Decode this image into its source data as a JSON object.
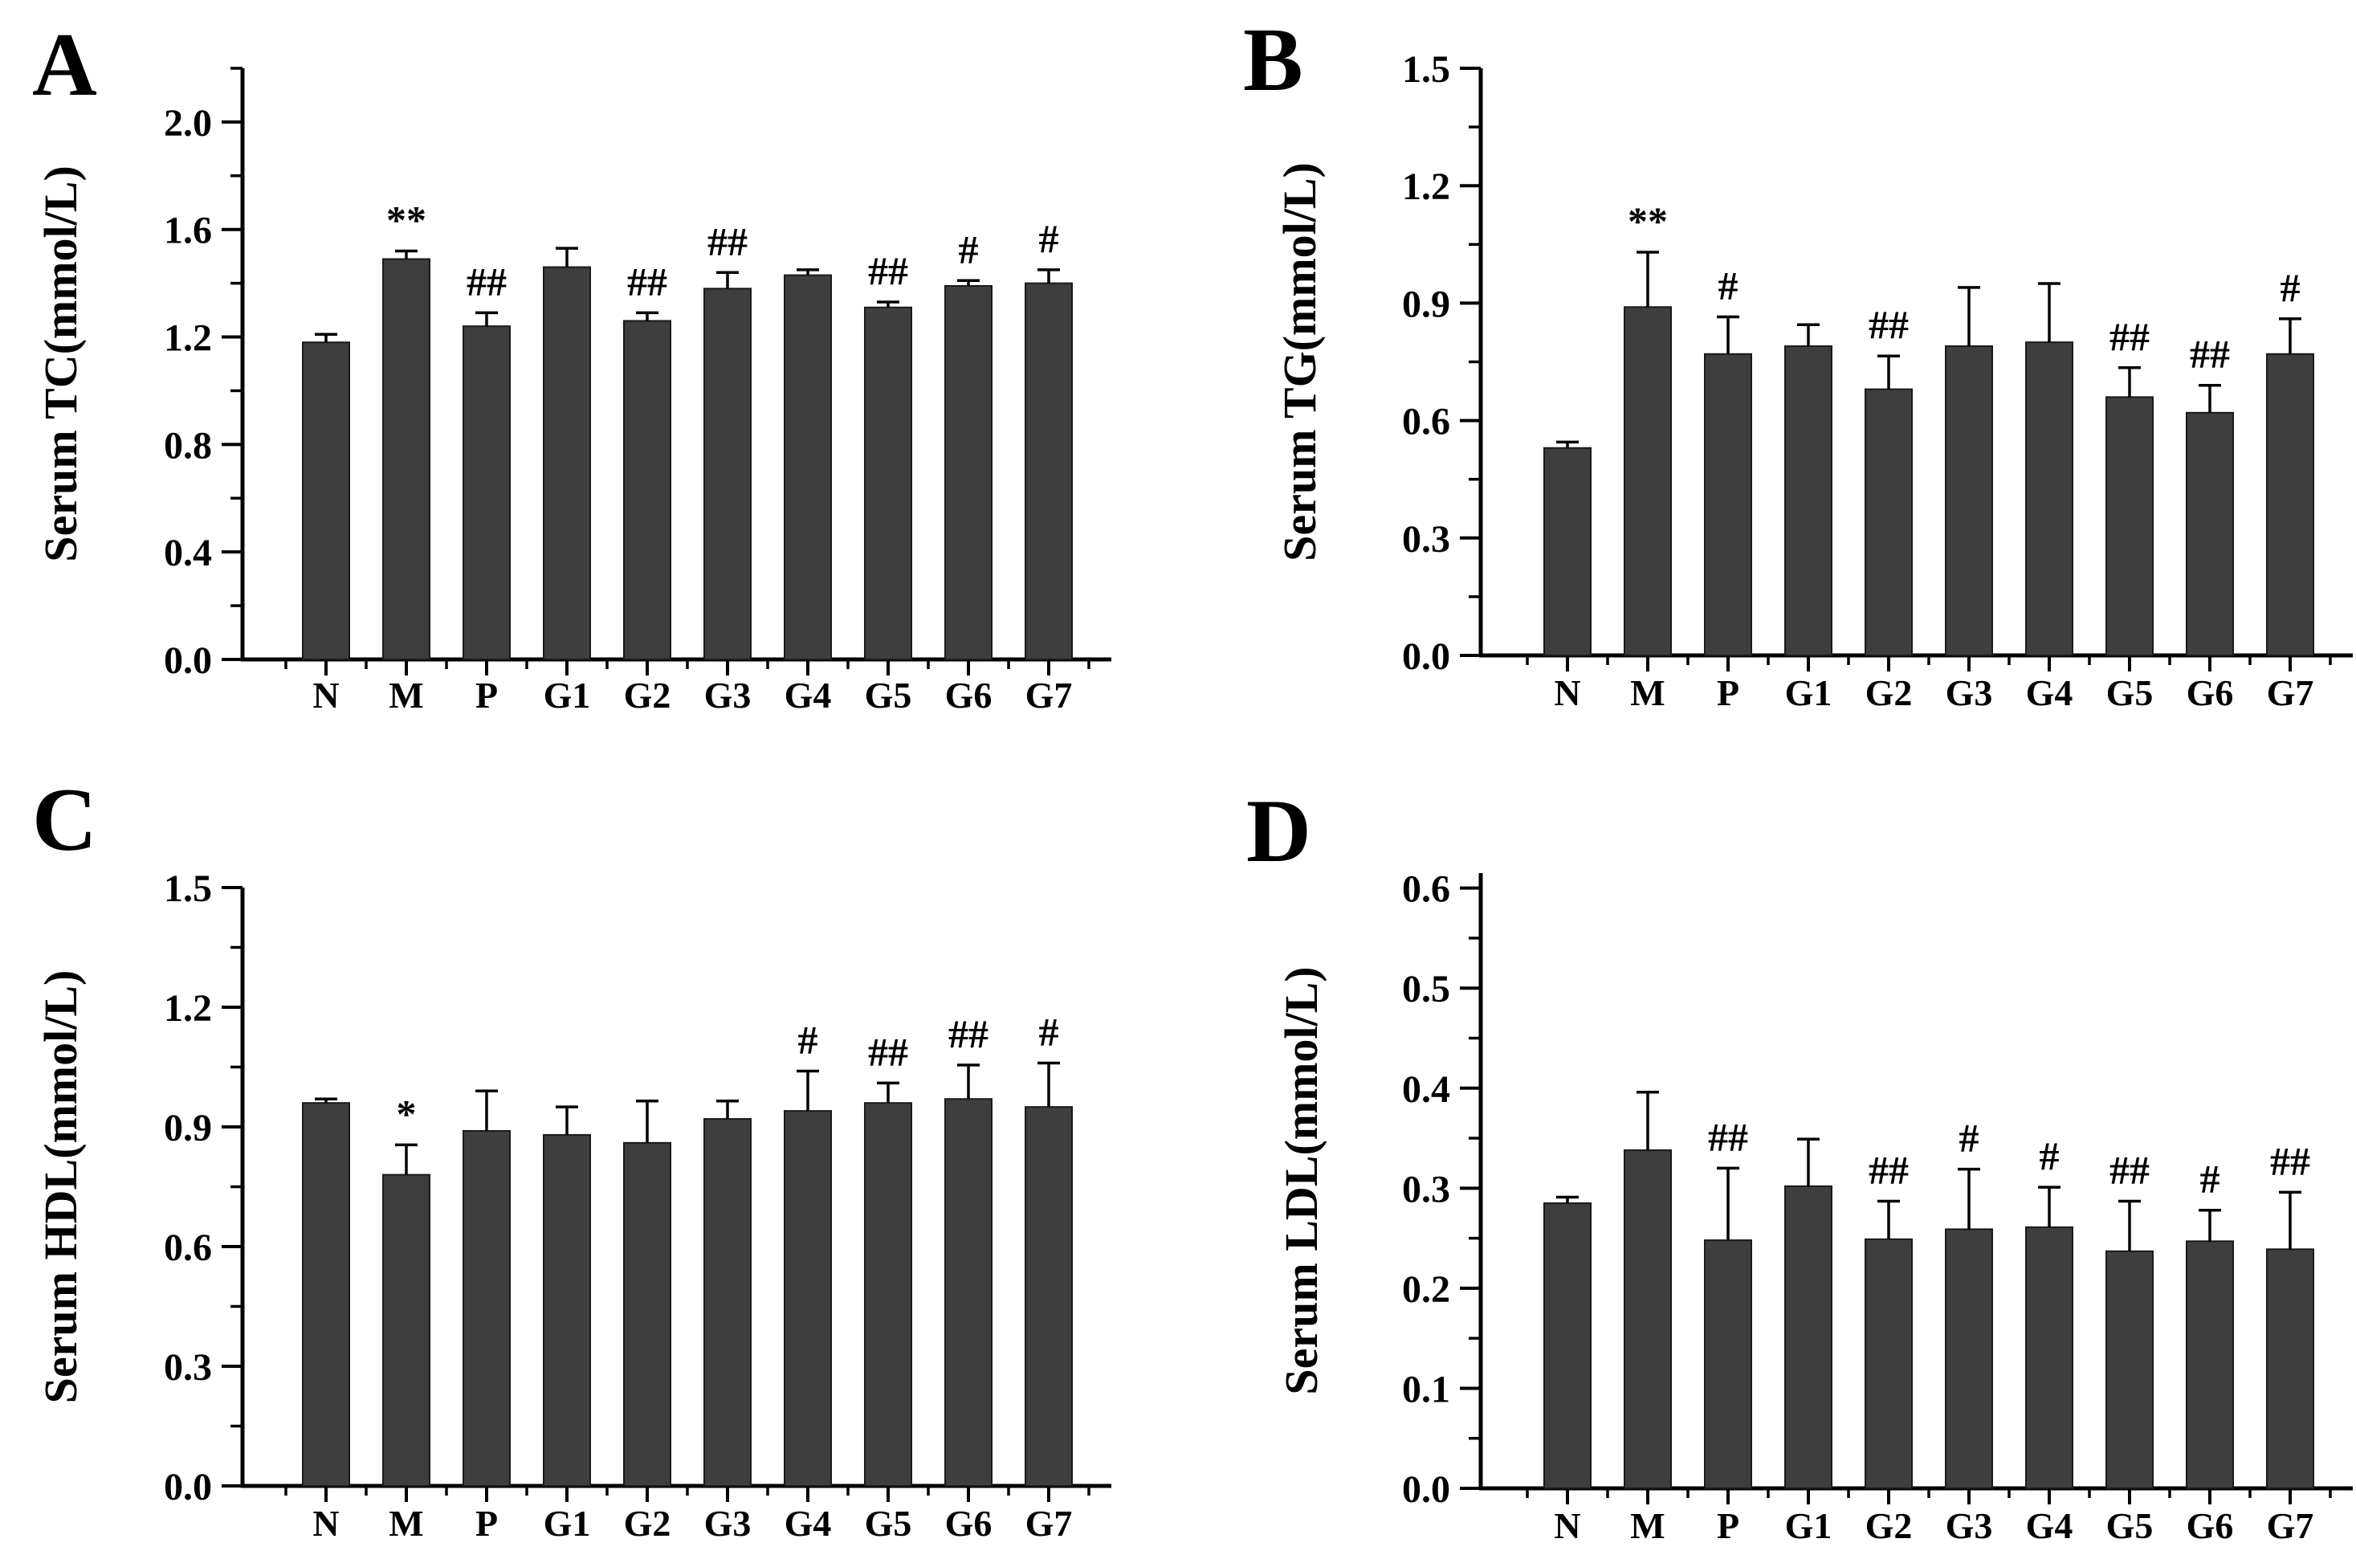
{
  "figure": {
    "background": "#ffffff",
    "bar_color": "#3e3e3e",
    "bar_stroke_color": "#1a1a1a",
    "axis_color": "#000000",
    "text_color": "#000000"
  },
  "chart_data": [
    {
      "type": "bar",
      "panel": "A",
      "ylabel": "Serum TC(mmol/L)",
      "xlabel": "",
      "categories": [
        "N",
        "M",
        "P",
        "G1",
        "G2",
        "G3",
        "G4",
        "G5",
        "G6",
        "G7"
      ],
      "values": [
        1.18,
        1.49,
        1.24,
        1.46,
        1.26,
        1.38,
        1.43,
        1.31,
        1.39,
        1.4
      ],
      "errors_plus": [
        0.03,
        0.03,
        0.05,
        0.07,
        0.03,
        0.06,
        0.02,
        0.02,
        0.02,
        0.05
      ],
      "annotations": [
        "",
        "**",
        "##",
        "",
        "##",
        "##",
        "",
        "##",
        "#",
        "#"
      ],
      "ylim": [
        0,
        2.2
      ],
      "yticks": [
        0.0,
        0.4,
        0.8,
        1.2,
        1.6,
        2.0
      ],
      "ytick_labels": [
        "0.0",
        "0.4",
        "0.8",
        "1.2",
        "1.6",
        "2.0"
      ],
      "minor_tick_step": 0.2,
      "grid": false,
      "legend": null
    },
    {
      "type": "bar",
      "panel": "B",
      "ylabel": "Serum TG(mmol/L)",
      "xlabel": "",
      "categories": [
        "N",
        "M",
        "P",
        "G1",
        "G2",
        "G3",
        "G4",
        "G5",
        "G6",
        "G7"
      ],
      "values": [
        0.53,
        0.89,
        0.77,
        0.79,
        0.68,
        0.79,
        0.8,
        0.66,
        0.62,
        0.77
      ],
      "errors_plus": [
        0.015,
        0.14,
        0.095,
        0.055,
        0.085,
        0.15,
        0.15,
        0.075,
        0.07,
        0.09
      ],
      "annotations": [
        "",
        "**",
        "#",
        "",
        "##",
        "",
        "",
        "##",
        "##",
        "#"
      ],
      "ylim": [
        0,
        1.5
      ],
      "yticks": [
        0.0,
        0.3,
        0.6,
        0.9,
        1.2,
        1.5
      ],
      "ytick_labels": [
        "0.0",
        "0.3",
        "0.6",
        "0.9",
        "1.2",
        "1.5"
      ],
      "minor_tick_step": 0.15,
      "grid": false,
      "legend": null
    },
    {
      "type": "bar",
      "panel": "C",
      "ylabel": "Serum HDL(mmol/L)",
      "xlabel": "",
      "categories": [
        "N",
        "M",
        "P",
        "G1",
        "G2",
        "G3",
        "G4",
        "G5",
        "G6",
        "G7"
      ],
      "values": [
        0.96,
        0.78,
        0.89,
        0.88,
        0.86,
        0.92,
        0.94,
        0.96,
        0.97,
        0.95
      ],
      "errors_plus": [
        0.01,
        0.075,
        0.1,
        0.07,
        0.105,
        0.045,
        0.1,
        0.05,
        0.085,
        0.11
      ],
      "annotations": [
        "",
        "*",
        "",
        "",
        "",
        "",
        "#",
        "##",
        "##",
        "#"
      ],
      "ylim": [
        0,
        1.5
      ],
      "yticks": [
        0.0,
        0.3,
        0.6,
        0.9,
        1.2,
        1.5
      ],
      "ytick_labels": [
        "0.0",
        "0.3",
        "0.6",
        "0.9",
        "1.2",
        "1.5"
      ],
      "minor_tick_step": 0.15,
      "grid": false,
      "legend": null
    },
    {
      "type": "bar",
      "panel": "D",
      "ylabel": "Serum LDL(mmol/L)",
      "xlabel": "",
      "categories": [
        "N",
        "M",
        "P",
        "G1",
        "G2",
        "G3",
        "G4",
        "G5",
        "G6",
        "G7"
      ],
      "values": [
        0.285,
        0.338,
        0.248,
        0.302,
        0.249,
        0.259,
        0.261,
        0.237,
        0.247,
        0.239
      ],
      "errors_plus": [
        0.006,
        0.058,
        0.072,
        0.047,
        0.038,
        0.06,
        0.04,
        0.05,
        0.031,
        0.057
      ],
      "annotations": [
        "",
        "",
        "##",
        "",
        "##",
        "#",
        "#",
        "##",
        "#",
        "##"
      ],
      "ylim": [
        0,
        0.615
      ],
      "yticks": [
        0.0,
        0.1,
        0.2,
        0.3,
        0.4,
        0.5,
        0.6
      ],
      "ytick_labels": [
        "0.0",
        "0.1",
        "0.2",
        "0.3",
        "0.4",
        "0.5",
        "0.6"
      ],
      "minor_tick_step": 0.05,
      "grid": false,
      "legend": null
    }
  ]
}
